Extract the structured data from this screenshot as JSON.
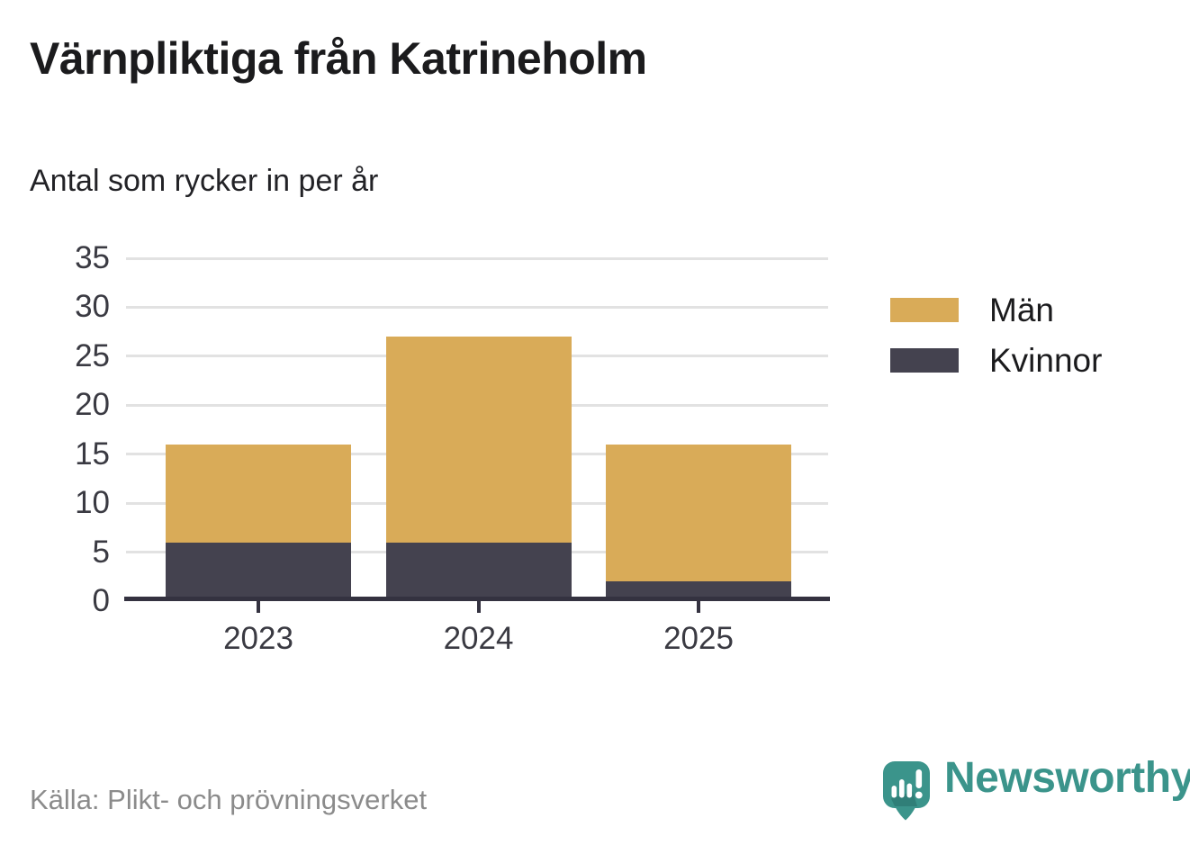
{
  "header": {
    "title": "Värnpliktiga från Katrineholm",
    "subtitle": "Antal som rycker in per år"
  },
  "footer": {
    "source": "Källa: Plikt- och prövningsverket",
    "brand_name": "Newsworthy"
  },
  "brand": {
    "color": "#3B948B",
    "color_dark": "#2F7B74",
    "icon": "newsworthy-speech-bubble-chart-icon"
  },
  "chart_data": {
    "type": "bar",
    "stacked": true,
    "title": "Värnpliktiga från Katrineholm",
    "subtitle": "Antal som rycker in per år",
    "categories": [
      "2023",
      "2024",
      "2025"
    ],
    "series": [
      {
        "name": "Män",
        "values": [
          10,
          21,
          14
        ],
        "color": "#D9AB58"
      },
      {
        "name": "Kvinnor",
        "values": [
          6,
          6,
          2
        ],
        "color": "#44424F"
      }
    ],
    "stack_totals": [
      16,
      27,
      16
    ],
    "stack_order_bottom_to_top": [
      "Kvinnor",
      "Män"
    ],
    "xlabel": "",
    "ylabel": "",
    "ylim": [
      0,
      35
    ],
    "yticks": [
      0,
      5,
      10,
      15,
      20,
      25,
      30,
      35
    ],
    "grid": true,
    "gridline_color": "#E2E2E2",
    "axis_line_color": "#343240",
    "tick_label_color": "#3A3A42",
    "legend_position": "right",
    "legend": [
      "Män",
      "Kvinnor"
    ]
  }
}
